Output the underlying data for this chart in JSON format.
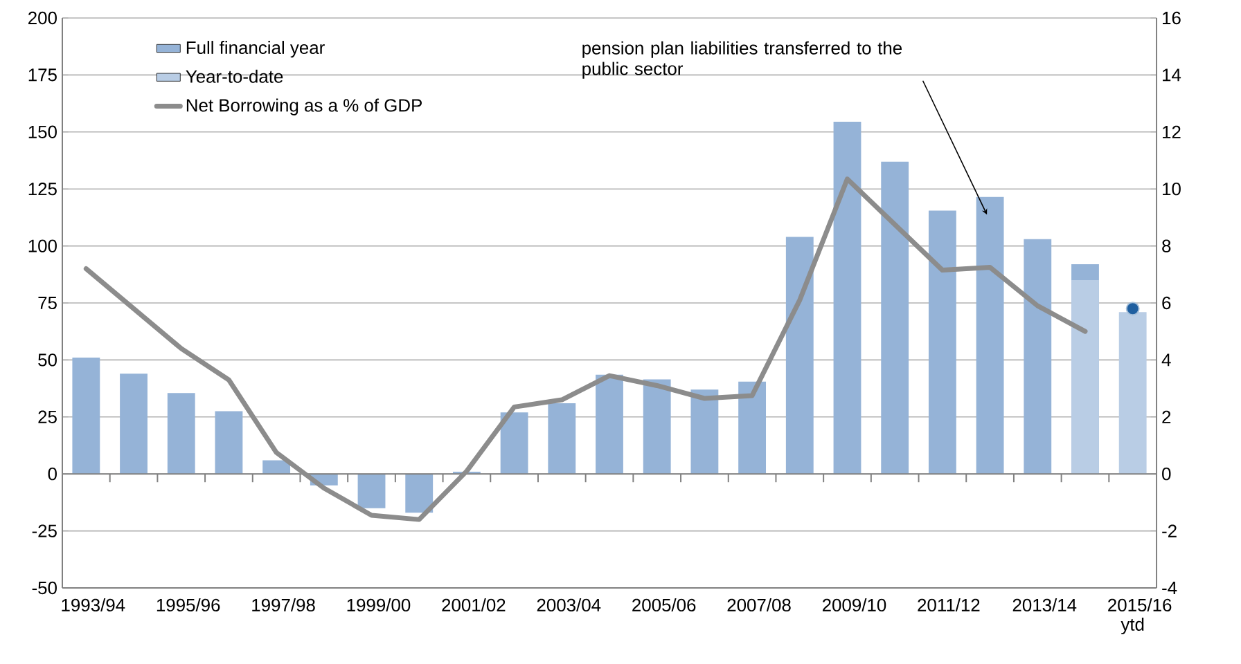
{
  "chart_data": {
    "type": "bar",
    "categories": [
      "1993/94",
      null,
      "1995/96",
      null,
      "1997/98",
      null,
      "1999/00",
      null,
      "2001/02",
      null,
      "2003/04",
      null,
      "2005/06",
      null,
      "2007/08",
      null,
      "2009/10",
      null,
      "2011/12",
      null,
      "2013/14",
      null,
      "2015/16 ytd"
    ],
    "series": [
      {
        "name": "Full financial year",
        "color": "#95b3d7",
        "values": [
          51,
          44,
          35.5,
          27.5,
          6,
          -5,
          -15,
          -17,
          1,
          27,
          31,
          43.5,
          41.5,
          37,
          40.5,
          104,
          154.5,
          137,
          115.5,
          121.5,
          103,
          92,
          null
        ]
      },
      {
        "name": "Year-to-date",
        "color": "#b9cde5",
        "values": [
          null,
          null,
          null,
          null,
          null,
          null,
          null,
          null,
          null,
          null,
          null,
          null,
          null,
          null,
          null,
          null,
          null,
          null,
          null,
          null,
          null,
          85,
          71
        ]
      },
      {
        "name": "Net Borrowing as a % of GDP",
        "type": "line",
        "axis": "y2",
        "color": "#8c8c8c",
        "values": [
          7.2,
          5.8,
          4.4,
          3.3,
          0.75,
          -0.5,
          -1.45,
          -1.6,
          0.1,
          2.35,
          2.6,
          3.45,
          3.1,
          2.65,
          2.75,
          6.1,
          10.35,
          8.75,
          7.15,
          7.25,
          5.9,
          5.0,
          null
        ]
      },
      {
        "type": "scatter",
        "axis": "y2",
        "color": "#1f5fa0",
        "values": [
          null,
          null,
          null,
          null,
          null,
          null,
          null,
          null,
          null,
          null,
          null,
          null,
          null,
          null,
          null,
          null,
          null,
          null,
          null,
          null,
          null,
          null,
          5.8
        ]
      }
    ],
    "ylim": [
      -50,
      200
    ],
    "yticks": [
      -50,
      -25,
      0,
      25,
      50,
      75,
      100,
      125,
      150,
      175,
      200
    ],
    "y2lim": [
      -4,
      16
    ],
    "y2ticks": [
      -4,
      -2,
      0,
      2,
      4,
      6,
      8,
      10,
      12,
      14,
      16
    ],
    "grid": "y",
    "legend": "top left",
    "annotations": [
      "pension plan liabilities transferred to the public sector"
    ]
  }
}
